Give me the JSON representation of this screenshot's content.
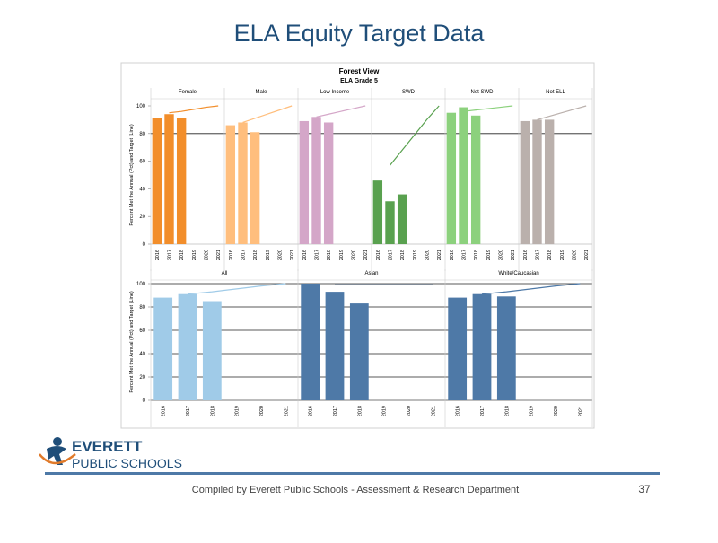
{
  "title": "ELA Equity Target Data",
  "logo": {
    "line1": "EVERETT",
    "line2": "PUBLIC SCHOOLS"
  },
  "footer": {
    "credit": "Compiled  by Everett Public Schools - Assessment & Research Department",
    "page": 37
  },
  "chart_data": [
    {
      "type": "bar",
      "title": "Forest View",
      "subtitle": "ELA Grade 5",
      "y_label": "Percent Met the Annual (Pct) and Target (Line)",
      "ylim": [
        0,
        100
      ],
      "yticks": [
        0,
        20,
        40,
        60,
        80,
        100
      ],
      "grid": false,
      "reference_line": 80,
      "groups": [
        {
          "name": "Female",
          "color": "#f28e2b",
          "target_color": "#f28e2b",
          "categories": [
            "2016",
            "2017",
            "2018",
            "2019",
            "2020",
            "2021"
          ],
          "values": [
            91,
            94,
            91,
            null,
            null,
            null
          ],
          "target": [
            null,
            95,
            96,
            97.5,
            99,
            100
          ]
        },
        {
          "name": "Male",
          "color": "#ffbe7d",
          "target_color": "#ffbe7d",
          "categories": [
            "2016",
            "2017",
            "2018",
            "2019",
            "2020",
            "2021"
          ],
          "values": [
            86,
            88,
            81,
            null,
            null,
            null
          ],
          "target": [
            null,
            88,
            91,
            94,
            97,
            100
          ]
        },
        {
          "name": "Low Income",
          "color": "#d4a6c8",
          "target_color": "#d4a6c8",
          "categories": [
            "2016",
            "2017",
            "2018",
            "2019",
            "2020",
            "2021"
          ],
          "values": [
            89,
            92,
            88,
            null,
            null,
            null
          ],
          "target": [
            null,
            92,
            94,
            96,
            98,
            100
          ]
        },
        {
          "name": "SWD",
          "color": "#59a14f",
          "target_color": "#59a14f",
          "categories": [
            "2016",
            "2017",
            "2018",
            "2019",
            "2020",
            "2021"
          ],
          "values": [
            46,
            31,
            36,
            null,
            null,
            null
          ],
          "target": [
            null,
            57,
            68,
            79,
            90,
            100
          ]
        },
        {
          "name": "Not SWD",
          "color": "#8cd17d",
          "target_color": "#8cd17d",
          "categories": [
            "2016",
            "2017",
            "2018",
            "2019",
            "2020",
            "2021"
          ],
          "values": [
            95,
            99,
            93,
            null,
            null,
            null
          ],
          "target": [
            null,
            96,
            97,
            98,
            99,
            100
          ]
        },
        {
          "name": "Not ELL",
          "color": "#bab0ac",
          "target_color": "#bab0ac",
          "categories": [
            "2016",
            "2017",
            "2018",
            "2019",
            "2020",
            "2021"
          ],
          "values": [
            89,
            90,
            90,
            null,
            null,
            null
          ],
          "target": [
            null,
            90,
            92.5,
            95,
            97.5,
            100
          ]
        }
      ]
    },
    {
      "type": "bar",
      "y_label": "Percent Met the Annual (Pct) and Target (Line)",
      "ylim": [
        0,
        100
      ],
      "yticks": [
        0,
        20,
        40,
        60,
        80,
        100
      ],
      "grid": true,
      "groups": [
        {
          "name": "All",
          "color": "#a0cbe8",
          "target_color": "#a0cbe8",
          "categories": [
            "2016",
            "2017",
            "2018",
            "2019",
            "2020",
            "2021"
          ],
          "values": [
            88,
            91,
            85,
            null,
            null,
            null
          ],
          "target": [
            null,
            91,
            93,
            95.5,
            98,
            100
          ]
        },
        {
          "name": "Asian",
          "color": "#4e79a7",
          "target_color": "#4e79a7",
          "categories": [
            "2016",
            "2017",
            "2018",
            "2019",
            "2020",
            "2021"
          ],
          "values": [
            100,
            93,
            83,
            null,
            null,
            null
          ],
          "target": [
            null,
            99,
            99,
            99,
            99,
            99
          ]
        },
        {
          "name": "White/Caucasian",
          "color": "#4e79a7",
          "target_color": "#4e79a7",
          "categories": [
            "2016",
            "2017",
            "2018",
            "2019",
            "2020",
            "2021"
          ],
          "values": [
            88,
            91,
            89,
            null,
            null,
            null
          ],
          "target": [
            null,
            91,
            93,
            95.5,
            98,
            100
          ]
        }
      ]
    }
  ]
}
